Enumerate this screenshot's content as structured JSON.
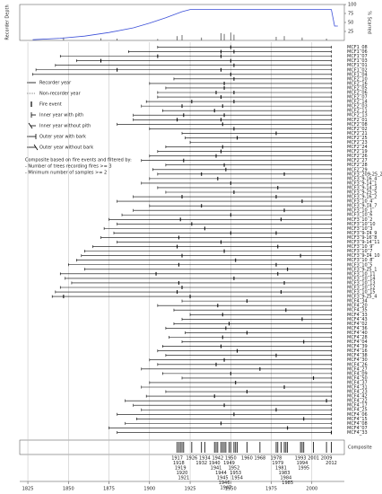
{
  "chart_data": {
    "type": "fire-history",
    "depth_label": "Recorder Depth",
    "scarred_label": "% Scarred",
    "composite_label": "Composite",
    "legend": [
      "Recorder year",
      "Non-recorder year",
      "Fire event",
      "Inner year with pith",
      "Inner year without pith",
      "Outer year with bark",
      "Outer year without bark"
    ],
    "filter_notes": [
      "Composite based on fire events and filtered by:",
      "- Number of trees recording fires >= 3",
      "- Minimum number of samples >= 2"
    ],
    "xlim": [
      1820,
      2020
    ],
    "xticks": [
      1825,
      1850,
      1875,
      1900,
      1925,
      1950,
      1975,
      2000
    ],
    "ylim": [
      0,
      100
    ],
    "yticks": [
      25,
      50,
      75,
      100
    ],
    "depth_color": "#3b4fd8",
    "depth": {
      "x": [
        1828,
        1845,
        1860,
        1875,
        1890,
        1900,
        1910,
        1920,
        1925,
        2012,
        2014,
        2016
      ],
      "values": [
        2,
        6,
        12,
        22,
        35,
        48,
        63,
        80,
        86,
        86,
        40,
        40
      ]
    },
    "scarred": {
      "x": [
        1847,
        1870,
        1880,
        1905,
        1917,
        1920,
        1932,
        1944,
        1946,
        1950,
        1952,
        1978,
        1983,
        1994,
        2009
      ],
      "values": [
        8,
        6,
        5,
        4,
        12,
        15,
        8,
        20,
        18,
        22,
        16,
        10,
        12,
        8,
        5
      ]
    },
    "samples": [
      {
        "name": "MCF1_08",
        "start": 1905,
        "end": 2012,
        "fires": [
          1950
        ]
      },
      {
        "name": "MCF1_06",
        "start": 1887,
        "end": 2012,
        "fires": [
          1944,
          1952
        ]
      },
      {
        "name": "MCF1_07",
        "start": 1845,
        "end": 2012,
        "fires": [
          1905,
          1944
        ]
      },
      {
        "name": "MCF1_03",
        "start": 1855,
        "end": 2012,
        "fires": [
          1870,
          1950
        ]
      },
      {
        "name": "MCF1_01",
        "start": 1842,
        "end": 2012,
        "fires": [
          1952
        ]
      },
      {
        "name": "MCF1_02",
        "start": 1830,
        "end": 2012,
        "fires": [
          1880,
          1944
        ]
      },
      {
        "name": "MCF1_04",
        "start": 1828,
        "end": 2012,
        "fires": [
          1950
        ]
      },
      {
        "name": "MCF2_10",
        "start": 1915,
        "end": 2012,
        "fires": [
          1952
        ]
      },
      {
        "name": "MCF2_16",
        "start": 1900,
        "end": 2012,
        "fires": [
          1946
        ]
      },
      {
        "name": "MCF2_05",
        "start": 1910,
        "end": 2012,
        "fires": [
          1946
        ]
      },
      {
        "name": "MCF2_06",
        "start": 1905,
        "end": 2012,
        "fires": [
          1941,
          1952
        ]
      },
      {
        "name": "MCF2_07",
        "start": 1905,
        "end": 2012,
        "fires": [
          1944
        ]
      },
      {
        "name": "MCF2_14",
        "start": 1898,
        "end": 2012,
        "fires": [
          1926,
          1952
        ]
      },
      {
        "name": "MCF2_03",
        "start": 1895,
        "end": 2012,
        "fires": [
          1920,
          1945
        ]
      },
      {
        "name": "MCF2_11",
        "start": 1908,
        "end": 2012,
        "fires": [
          1940
        ]
      },
      {
        "name": "MCF2_13",
        "start": 1890,
        "end": 2012,
        "fires": [
          1921,
          1946
        ]
      },
      {
        "name": "MCF2_01",
        "start": 1890,
        "end": 2012,
        "fires": [
          1917,
          1944
        ]
      },
      {
        "name": "MCF2_08",
        "start": 1880,
        "end": 2012,
        "fires": [
          1945
        ]
      },
      {
        "name": "MCF2_02",
        "start": 1900,
        "end": 2012,
        "fires": [
          1952
        ]
      },
      {
        "name": "MCF2_21",
        "start": 1920,
        "end": 2012,
        "fires": [
          1978
        ]
      },
      {
        "name": "MCF2_25",
        "start": 1922,
        "end": 2012,
        "fires": [
          1954
        ]
      },
      {
        "name": "MCF2_23",
        "start": 1925,
        "end": 2012,
        "fires": []
      },
      {
        "name": "MCF2_24",
        "start": 1910,
        "end": 2012,
        "fires": [
          1945
        ]
      },
      {
        "name": "MCF2_19",
        "start": 1905,
        "end": 2012,
        "fires": [
          1944
        ]
      },
      {
        "name": "MCF2_26",
        "start": 1900,
        "end": 2012,
        "fires": [
          1941
        ]
      },
      {
        "name": "MCF2_27",
        "start": 1895,
        "end": 2012,
        "fires": [
          1921
        ]
      },
      {
        "name": "MCF2_28",
        "start": 1910,
        "end": 2012,
        "fires": [
          1946
        ]
      },
      {
        "name": "MCF2_29",
        "start": 1902,
        "end": 2012,
        "fires": [
          1947
        ]
      },
      {
        "name": "MCF3_209-25_2",
        "start": 1905,
        "end": 2012,
        "fires": [
          1932,
          1983
        ]
      },
      {
        "name": "MCF3_9-16_4",
        "start": 1900,
        "end": 2012,
        "fires": [
          1942
        ]
      },
      {
        "name": "MCF3_9-14_1",
        "start": 1895,
        "end": 2012,
        "fires": [
          1950
        ]
      },
      {
        "name": "MCF3_9-14_3",
        "start": 1905,
        "end": 2012,
        "fires": [
          1979
        ]
      },
      {
        "name": "MCF3_9-25_5",
        "start": 1910,
        "end": 2012,
        "fires": [
          1952
        ]
      },
      {
        "name": "MCF3_9-16_2",
        "start": 1890,
        "end": 2012,
        "fires": [
          1920,
          1978
        ]
      },
      {
        "name": "MCF3_10_4",
        "start": 1880,
        "end": 2012,
        "fires": [
          1994
        ]
      },
      {
        "name": "MCF3_9-14_7",
        "start": 1900,
        "end": 2012,
        "fires": [
          1932
        ]
      },
      {
        "name": "MCF3_10_1",
        "start": 1890,
        "end": 2012,
        "fires": [
          1983
        ]
      },
      {
        "name": "MCF3_10_6",
        "start": 1883,
        "end": 2012,
        "fires": [
          1950
        ]
      },
      {
        "name": "MCF3_10_2",
        "start": 1875,
        "end": 2012,
        "fires": [
          1919,
          1981
        ]
      },
      {
        "name": "MCF3_10_10",
        "start": 1880,
        "end": 2012,
        "fires": [
          1926
        ]
      },
      {
        "name": "MCF3_10_3",
        "start": 1872,
        "end": 2012,
        "fires": [
          1934
        ]
      },
      {
        "name": "MCF3_9-14_9",
        "start": 1878,
        "end": 2012,
        "fires": [
          1950,
          1978
        ]
      },
      {
        "name": "MCF3_9-16_8",
        "start": 1870,
        "end": 2012,
        "fires": [
          1918
        ]
      },
      {
        "name": "MCF3_9-14_11",
        "start": 1880,
        "end": 2012,
        "fires": [
          1944
        ]
      },
      {
        "name": "MCF3_10_9",
        "start": 1865,
        "end": 2012,
        "fires": [
          1917,
          1979
        ]
      },
      {
        "name": "MCF3_10_7",
        "start": 1860,
        "end": 2012,
        "fires": [
          1946
        ]
      },
      {
        "name": "MCF3_9-14_10",
        "start": 1858,
        "end": 2012,
        "fires": [
          1920,
          1993
        ]
      },
      {
        "name": "MCF3_10_8",
        "start": 1855,
        "end": 2012,
        "fires": [
          1953
        ]
      },
      {
        "name": "MCF3_10_5",
        "start": 1850,
        "end": 2012,
        "fires": [
          1918,
          1978
        ]
      },
      {
        "name": "MCF3_9-25_1",
        "start": 1860,
        "end": 2012,
        "fires": [
          1985
        ]
      },
      {
        "name": "MCF3_10_11",
        "start": 1845,
        "end": 2012,
        "fires": [
          1904,
          1979
        ]
      },
      {
        "name": "MCF3_10_14",
        "start": 1848,
        "end": 2012,
        "fires": [
          1952
        ]
      },
      {
        "name": "MCF3_10_13",
        "start": 1852,
        "end": 2012,
        "fires": [
          1918,
          1983
        ]
      },
      {
        "name": "MCF3_10_12",
        "start": 1845,
        "end": 2012,
        "fires": [
          1920
        ]
      },
      {
        "name": "MCF3_10_15",
        "start": 1842,
        "end": 2012,
        "fires": [
          1917,
          1981
        ]
      },
      {
        "name": "MCF3_9-25_4",
        "start": 1840,
        "end": 2012,
        "fires": [
          1847,
          1925
        ]
      },
      {
        "name": "MCF4_34",
        "start": 1920,
        "end": 2012,
        "fires": [
          1960
        ]
      },
      {
        "name": "MCF4_20",
        "start": 1905,
        "end": 2012,
        "fires": [
          1942
        ]
      },
      {
        "name": "MCF4_35",
        "start": 1915,
        "end": 2012,
        "fires": [
          1984
        ]
      },
      {
        "name": "MCF4_33",
        "start": 1925,
        "end": 2012,
        "fires": [
          1945
        ]
      },
      {
        "name": "MCF4_43",
        "start": 1920,
        "end": 2012,
        "fires": [
          1994
        ]
      },
      {
        "name": "MCF4_02",
        "start": 1915,
        "end": 2012,
        "fires": [
          1949
        ]
      },
      {
        "name": "MCF4_36",
        "start": 1910,
        "end": 2012,
        "fires": [
          1947
        ]
      },
      {
        "name": "MCF4_40",
        "start": 1922,
        "end": 2012,
        "fires": [
          1960
        ]
      },
      {
        "name": "MCF4_28",
        "start": 1912,
        "end": 2012,
        "fires": [
          1945
        ]
      },
      {
        "name": "MCF4_04",
        "start": 1920,
        "end": 2012,
        "fires": [
          1995
        ]
      },
      {
        "name": "MCF4_39",
        "start": 1908,
        "end": 2012,
        "fires": [
          1944
        ]
      },
      {
        "name": "MCF4_16",
        "start": 1905,
        "end": 2012,
        "fires": [
          1954
        ]
      },
      {
        "name": "MCF4_38",
        "start": 1910,
        "end": 2012,
        "fires": [
          1978
        ]
      },
      {
        "name": "MCF4_30",
        "start": 1900,
        "end": 2012,
        "fires": [
          1946
        ]
      },
      {
        "name": "MCF4_26",
        "start": 1905,
        "end": 2012,
        "fires": [
          1941
        ]
      },
      {
        "name": "MCF4_27",
        "start": 1895,
        "end": 2012,
        "fires": [
          1968
        ]
      },
      {
        "name": "MCF4_09",
        "start": 1908,
        "end": 2012,
        "fires": [
          1950
        ]
      },
      {
        "name": "MCF4_50",
        "start": 1920,
        "end": 2012,
        "fires": [
          2001
        ]
      },
      {
        "name": "MCF4_37",
        "start": 1900,
        "end": 2012,
        "fires": [
          1953
        ]
      },
      {
        "name": "MCF4_31",
        "start": 1895,
        "end": 2012,
        "fires": [
          1983
        ]
      },
      {
        "name": "MCF4_23",
        "start": 1910,
        "end": 2012,
        "fires": [
          1960
        ]
      },
      {
        "name": "MCF4_42",
        "start": 1898,
        "end": 2012,
        "fires": [
          1940
        ]
      },
      {
        "name": "MCF4_22",
        "start": 1885,
        "end": 2012,
        "fires": [
          2009
        ]
      },
      {
        "name": "MCF4_17",
        "start": 1890,
        "end": 2012,
        "fires": [
          1946
        ]
      },
      {
        "name": "MCF4_25",
        "start": 1895,
        "end": 2012,
        "fires": [
          1978
        ]
      },
      {
        "name": "MCF4_06",
        "start": 1880,
        "end": 2012,
        "fires": [
          1952
        ]
      },
      {
        "name": "MCF4_15",
        "start": 1892,
        "end": 2012,
        "fires": [
          1995
        ]
      },
      {
        "name": "MCF4_08",
        "start": 1885,
        "end": 2012,
        "fires": [
          1944
        ]
      },
      {
        "name": "MCF4_07",
        "start": 1875,
        "end": 2012,
        "fires": [
          1985
        ]
      },
      {
        "name": "MCF4_33",
        "start": 1880,
        "end": 2012,
        "fires": [
          2012
        ]
      }
    ],
    "composite": [
      1917,
      1918,
      1919,
      1920,
      1921,
      1926,
      1932,
      1934,
      1940,
      1941,
      1942,
      1944,
      1945,
      1946,
      1947,
      1949,
      1950,
      1952,
      1953,
      1954,
      1960,
      1968,
      1978,
      1979,
      1981,
      1983,
      1984,
      1985,
      1993,
      1994,
      1995,
      2001,
      2009,
      2012
    ]
  }
}
